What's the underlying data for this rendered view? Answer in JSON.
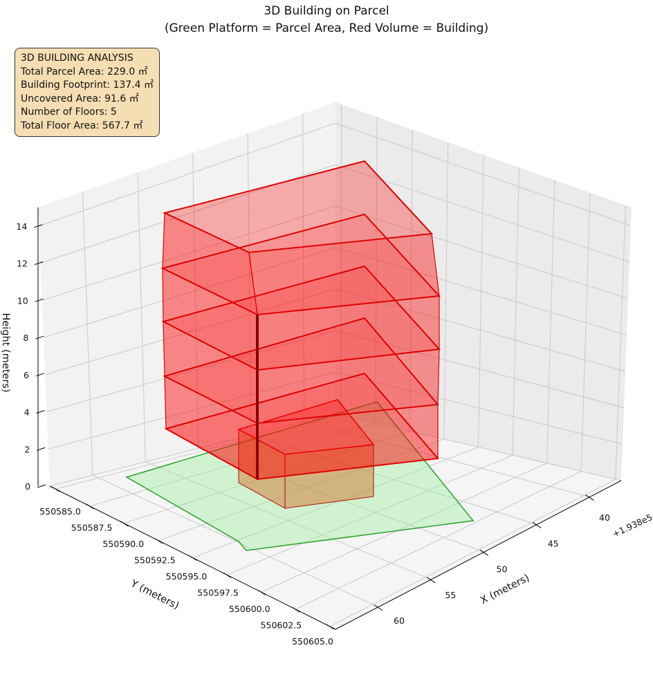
{
  "chart_data": {
    "type": "3d-polygon",
    "title": "3D Building on Parcel",
    "subtitle": "(Green Platform = Parcel Area, Red Volume = Building)",
    "xlabel": "X (meters)",
    "ylabel": "Y (meters)",
    "zlabel": "Height (meters)",
    "x_offset_label": "+1.938e5",
    "x_ticks": [
      "40",
      "45",
      "50",
      "55",
      "60"
    ],
    "y_ticks": [
      "550585.0",
      "550587.5",
      "550590.0",
      "550592.5",
      "550595.0",
      "550597.5",
      "550600.0",
      "550602.5",
      "550605.0"
    ],
    "z_ticks": [
      "0",
      "2",
      "4",
      "6",
      "8",
      "10",
      "12",
      "14"
    ],
    "zlim": [
      0,
      15
    ],
    "grid": true,
    "series": [
      {
        "name": "Parcel Area",
        "color": "#2ca02c",
        "fill": "#90ee90"
      },
      {
        "name": "Building",
        "color": "#dd0000",
        "fill": "#ff0000"
      }
    ],
    "info_box": {
      "title": "3D BUILDING ANALYSIS",
      "lines": [
        "Total Parcel Area: 229.0 ㎡",
        "Building Footprint: 137.4 ㎡",
        "Uncovered Area: 91.6 ㎡",
        "Number of Floors: 5",
        "Total Floor Area: 567.7 ㎡"
      ],
      "total_parcel_area": 229.0,
      "building_footprint": 137.4,
      "uncovered_area": 91.6,
      "floors": 5,
      "total_floor_area": 567.7
    }
  }
}
